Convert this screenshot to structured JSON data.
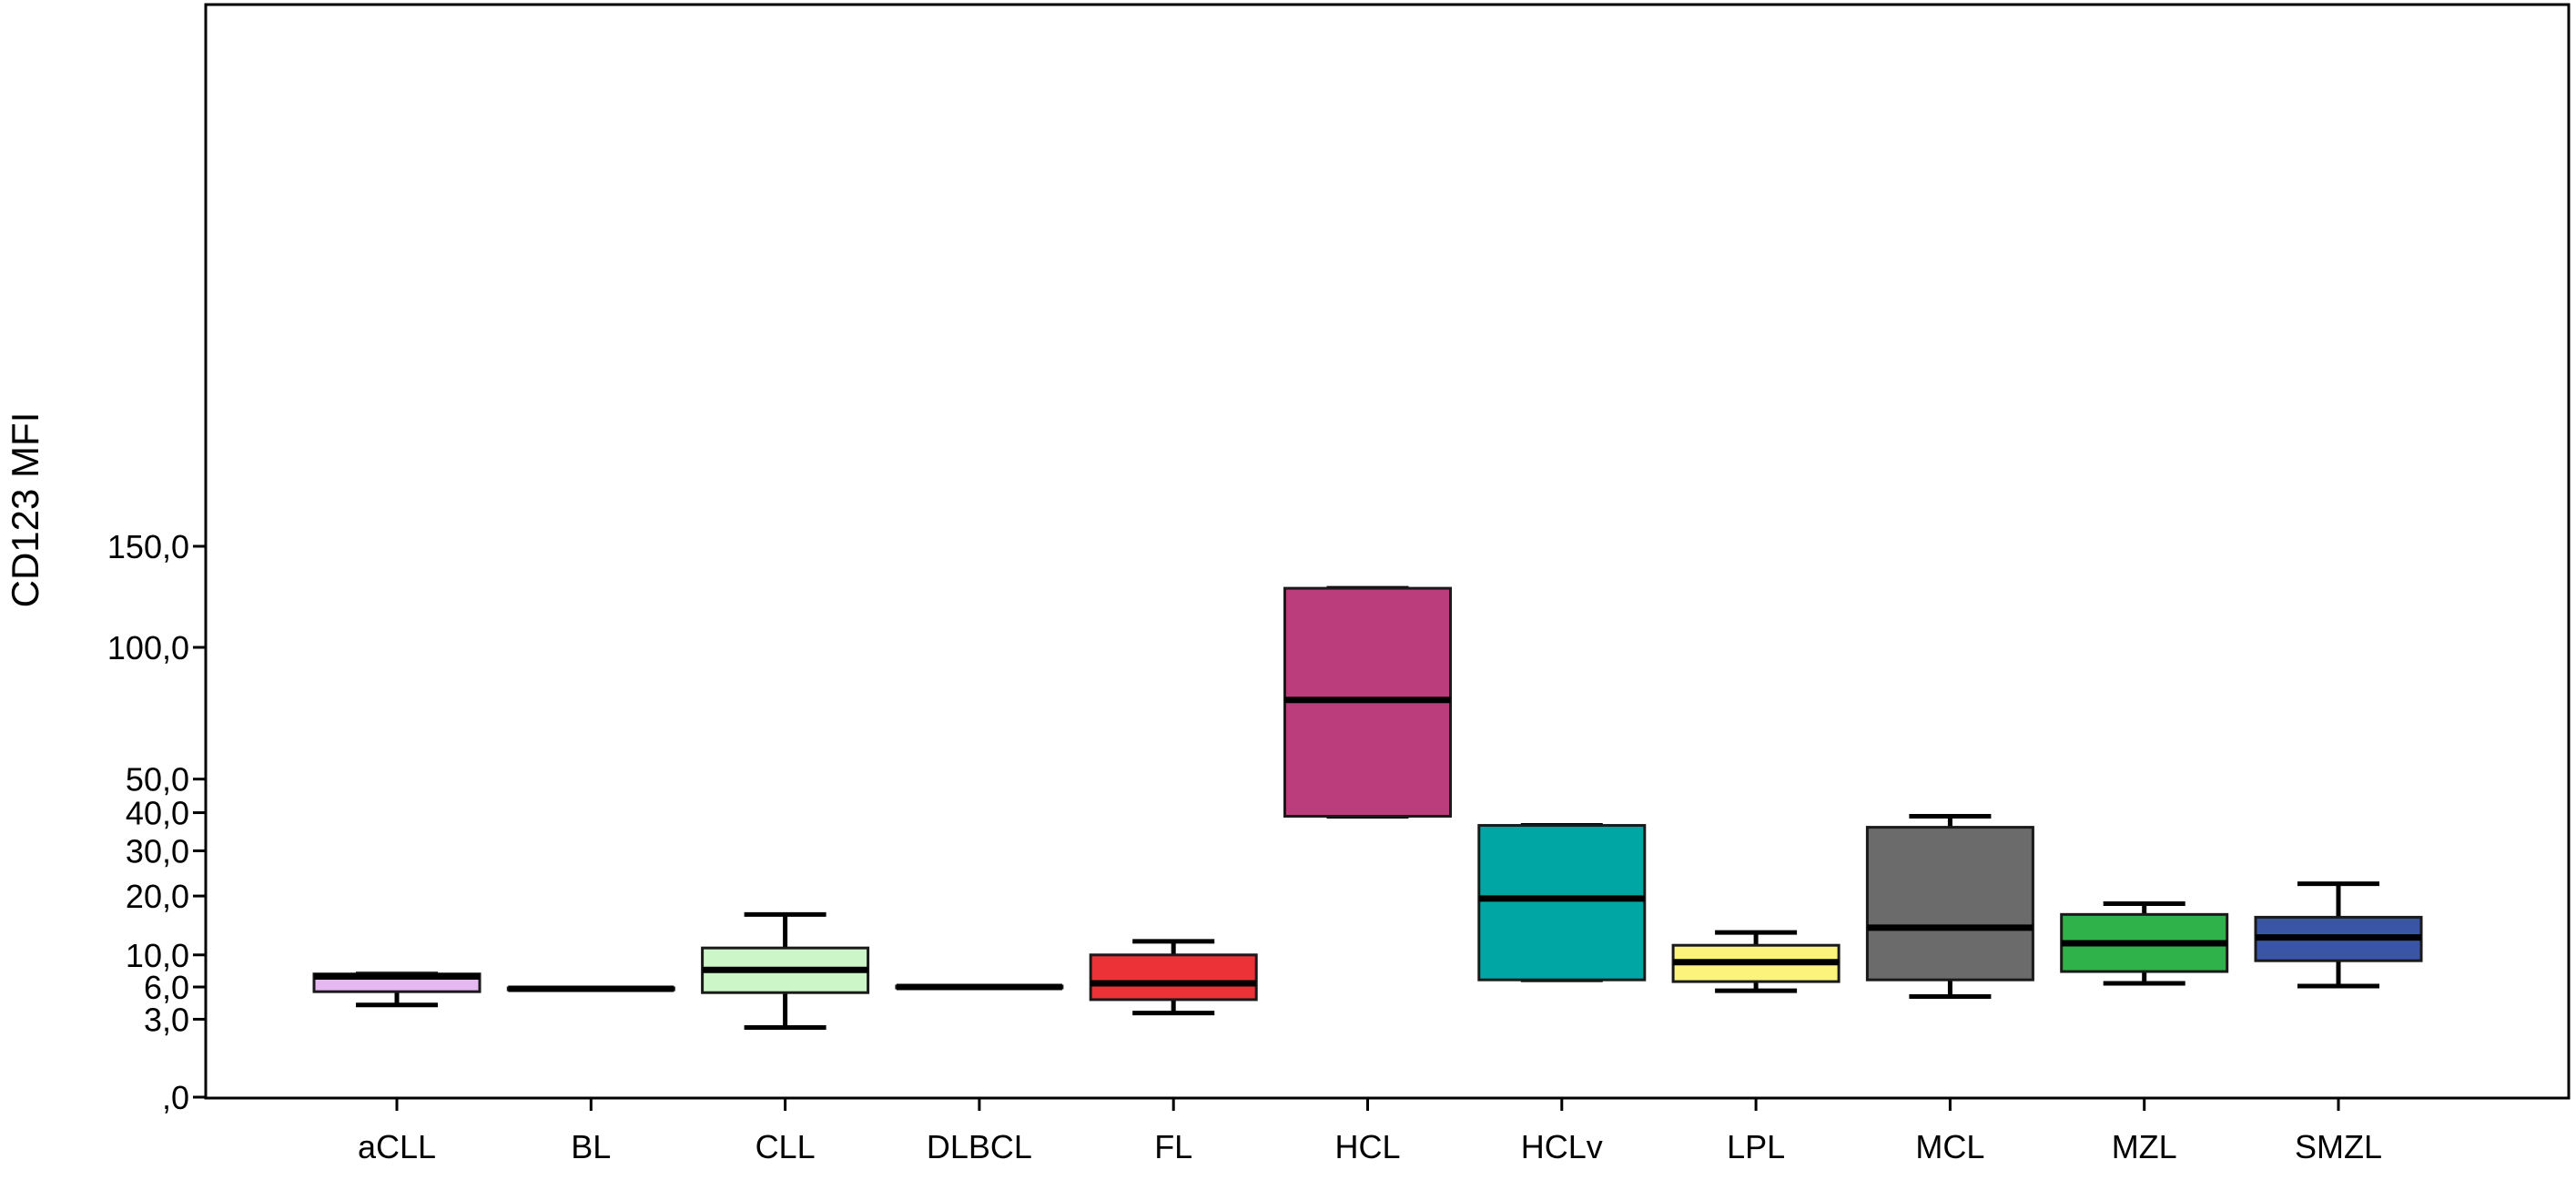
{
  "chart_data": {
    "type": "boxplot",
    "title": "",
    "xlabel": "",
    "ylabel": "CD123 MFI",
    "y_scale": "square-root",
    "ylim": [
      0,
      170
    ],
    "y_ticks": [
      {
        "value": 0,
        "label": ",0"
      },
      {
        "value": 3,
        "label": "3,0"
      },
      {
        "value": 6,
        "label": "6,0"
      },
      {
        "value": 10,
        "label": "10,0"
      },
      {
        "value": 20,
        "label": "20,0"
      },
      {
        "value": 30,
        "label": "30,0"
      },
      {
        "value": 40,
        "label": "40,0"
      },
      {
        "value": 50,
        "label": "50,0"
      },
      {
        "value": 100,
        "label": "100,0"
      },
      {
        "value": 150,
        "label": "150,0"
      }
    ],
    "grid": false,
    "categories": [
      "aCLL",
      "BL",
      "CLL",
      "DLBCL",
      "FL",
      "HCL",
      "HCLv",
      "LPL",
      "MCL",
      "MZL",
      "SMZL"
    ],
    "boxes": [
      {
        "category": "aCLL",
        "min": 4.2,
        "q1": 5.5,
        "median": 7.2,
        "q3": 7.5,
        "max": 7.5,
        "color": "#e6b8f2"
      },
      {
        "category": "BL",
        "min": 5.7,
        "q1": 5.7,
        "median": 5.8,
        "q3": 5.9,
        "max": 5.9,
        "color": "#ffffff"
      },
      {
        "category": "CLL",
        "min": 2.4,
        "q1": 5.4,
        "median": 8.0,
        "q3": 11.0,
        "max": 16.5,
        "color": "#ccf5c8"
      },
      {
        "category": "DLBCL",
        "min": 6.0,
        "q1": 6.0,
        "median": 6.0,
        "q3": 6.1,
        "max": 6.1,
        "color": "#ffffff"
      },
      {
        "category": "FL",
        "min": 3.5,
        "q1": 4.7,
        "median": 6.4,
        "q3": 10.0,
        "max": 12.0,
        "color": "#ed3237"
      },
      {
        "category": "HCL",
        "min": 39.0,
        "q1": 39.0,
        "median": 78.0,
        "q3": 128.0,
        "max": 128.0,
        "color": "#bb3d7b"
      },
      {
        "category": "HCLv",
        "min": 6.8,
        "q1": 6.8,
        "median": 19.5,
        "q3": 36.5,
        "max": 36.5,
        "color": "#00a6a4"
      },
      {
        "category": "LPL",
        "min": 5.6,
        "q1": 6.6,
        "median": 9.0,
        "q3": 11.4,
        "max": 13.4,
        "color": "#fbf37c"
      },
      {
        "category": "MCL",
        "min": 5.0,
        "q1": 6.8,
        "median": 14.2,
        "q3": 36.0,
        "max": 39.0,
        "color": "#6b6b6b"
      },
      {
        "category": "MZL",
        "min": 6.4,
        "q1": 7.8,
        "median": 11.7,
        "q3": 16.5,
        "max": 18.5,
        "color": "#2fb24a"
      },
      {
        "category": "SMZL",
        "min": 6.1,
        "q1": 9.2,
        "median": 12.6,
        "q3": 16.0,
        "max": 22.5,
        "color": "#3a55a6"
      }
    ]
  }
}
